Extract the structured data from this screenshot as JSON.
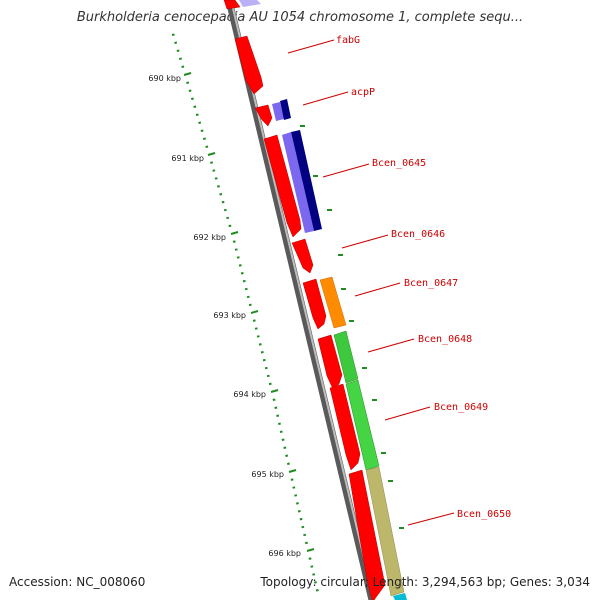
{
  "title": "Burkholderia cenocepacia AU 1054 chromosome 1, complete sequ...",
  "footer": {
    "accession": "Accession: NC_008060",
    "stats": "Topology: circular; Length: 3,294,563 bp; Genes: 3,034"
  },
  "colors": {
    "backbone": "#808080",
    "forward_cds": "#ff0000",
    "gene_label": "#cc0000",
    "kbp_tick": "#228b22",
    "lavender": "#7b68ee",
    "navy": "#000080",
    "orange": "#ff8c00",
    "green": "#3ec83e",
    "khaki": "#bdb76b",
    "cyan": "#00bcd4"
  },
  "kbp_labels": [
    "690 kbp",
    "691 kbp",
    "692 kbp",
    "693 kbp",
    "694 kbp",
    "695 kbp",
    "696 kbp"
  ],
  "gene_labels": [
    "fabG",
    "acpP",
    "Bcen_0645",
    "Bcen_0646",
    "Bcen_0647",
    "Bcen_0648",
    "Bcen_0649",
    "Bcen_0650"
  ]
}
